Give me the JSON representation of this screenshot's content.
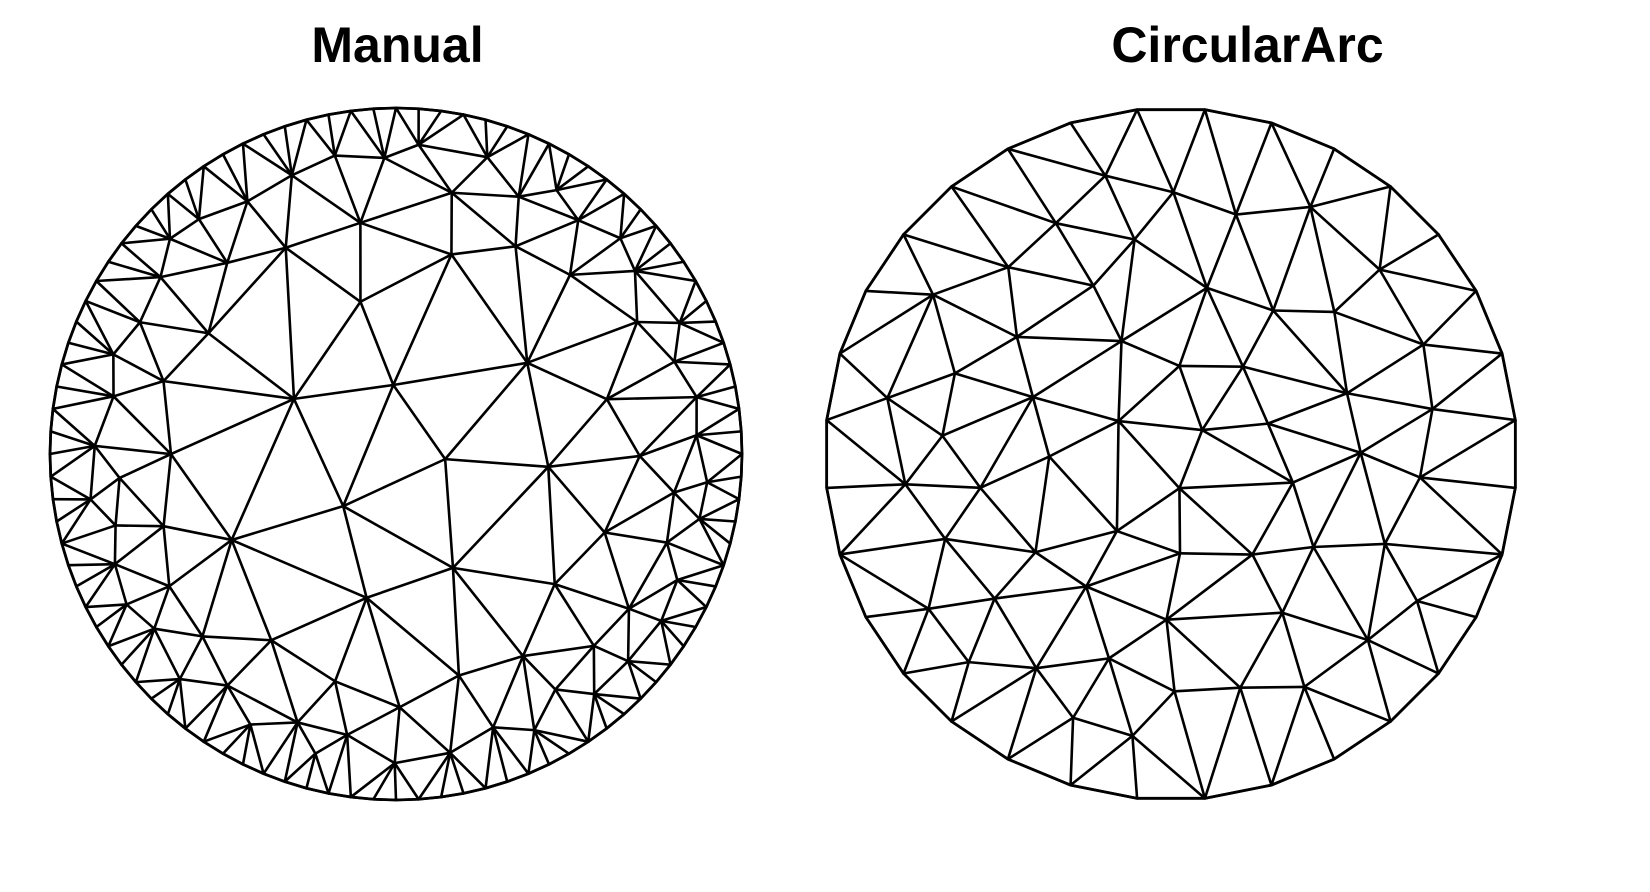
{
  "panels": [
    {
      "title": "Manual",
      "mesh": "dense boundary refinement, 96 boundary nodes",
      "line_color": "#000000"
    },
    {
      "title": "CircularArc",
      "mesh": "uniform triangulation, 32 boundary nodes",
      "line_color": "#000000"
    }
  ],
  "background_color": "#ffffff"
}
